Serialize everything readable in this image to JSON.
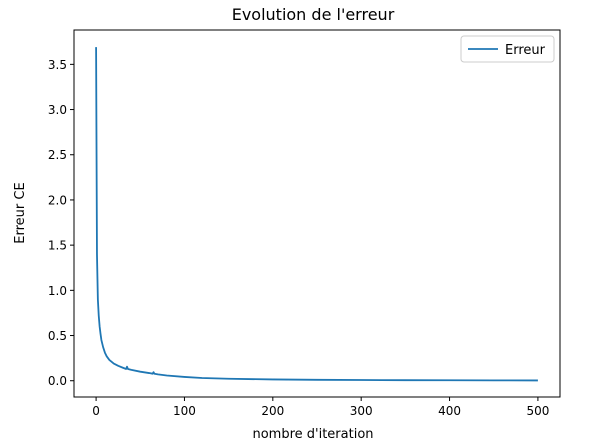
{
  "chart_data": {
    "type": "line",
    "title": "Evolution de l'erreur",
    "xlabel": "nombre d'iteration",
    "ylabel": "Erreur CE",
    "xlim": [
      -25,
      525
    ],
    "ylim": [
      -0.18,
      3.88
    ],
    "xticks": [
      0,
      100,
      200,
      300,
      400,
      500
    ],
    "yticks": [
      0.0,
      0.5,
      1.0,
      1.5,
      2.0,
      2.5,
      3.0,
      3.5
    ],
    "xtick_labels": [
      "0",
      "100",
      "200",
      "300",
      "400",
      "500"
    ],
    "ytick_labels": [
      "0.0",
      "0.5",
      "1.0",
      "1.5",
      "2.0",
      "2.5",
      "3.0",
      "3.5"
    ],
    "grid": false,
    "legend_position": "top-right",
    "series": [
      {
        "name": "Erreur",
        "color": "#1f77b4",
        "x": [
          0,
          1,
          2,
          3,
          4,
          5,
          6,
          8,
          10,
          12,
          15,
          20,
          25,
          30,
          34,
          35,
          36,
          40,
          50,
          60,
          64,
          65,
          66,
          70,
          80,
          100,
          120,
          150,
          200,
          250,
          300,
          350,
          400,
          450,
          500
        ],
        "values": [
          3.69,
          1.4,
          0.9,
          0.72,
          0.6,
          0.52,
          0.45,
          0.37,
          0.31,
          0.27,
          0.23,
          0.19,
          0.165,
          0.145,
          0.13,
          0.155,
          0.13,
          0.12,
          0.1,
          0.085,
          0.078,
          0.095,
          0.077,
          0.07,
          0.058,
          0.042,
          0.03,
          0.022,
          0.014,
          0.01,
          0.008,
          0.006,
          0.005,
          0.004,
          0.003
        ]
      }
    ]
  }
}
